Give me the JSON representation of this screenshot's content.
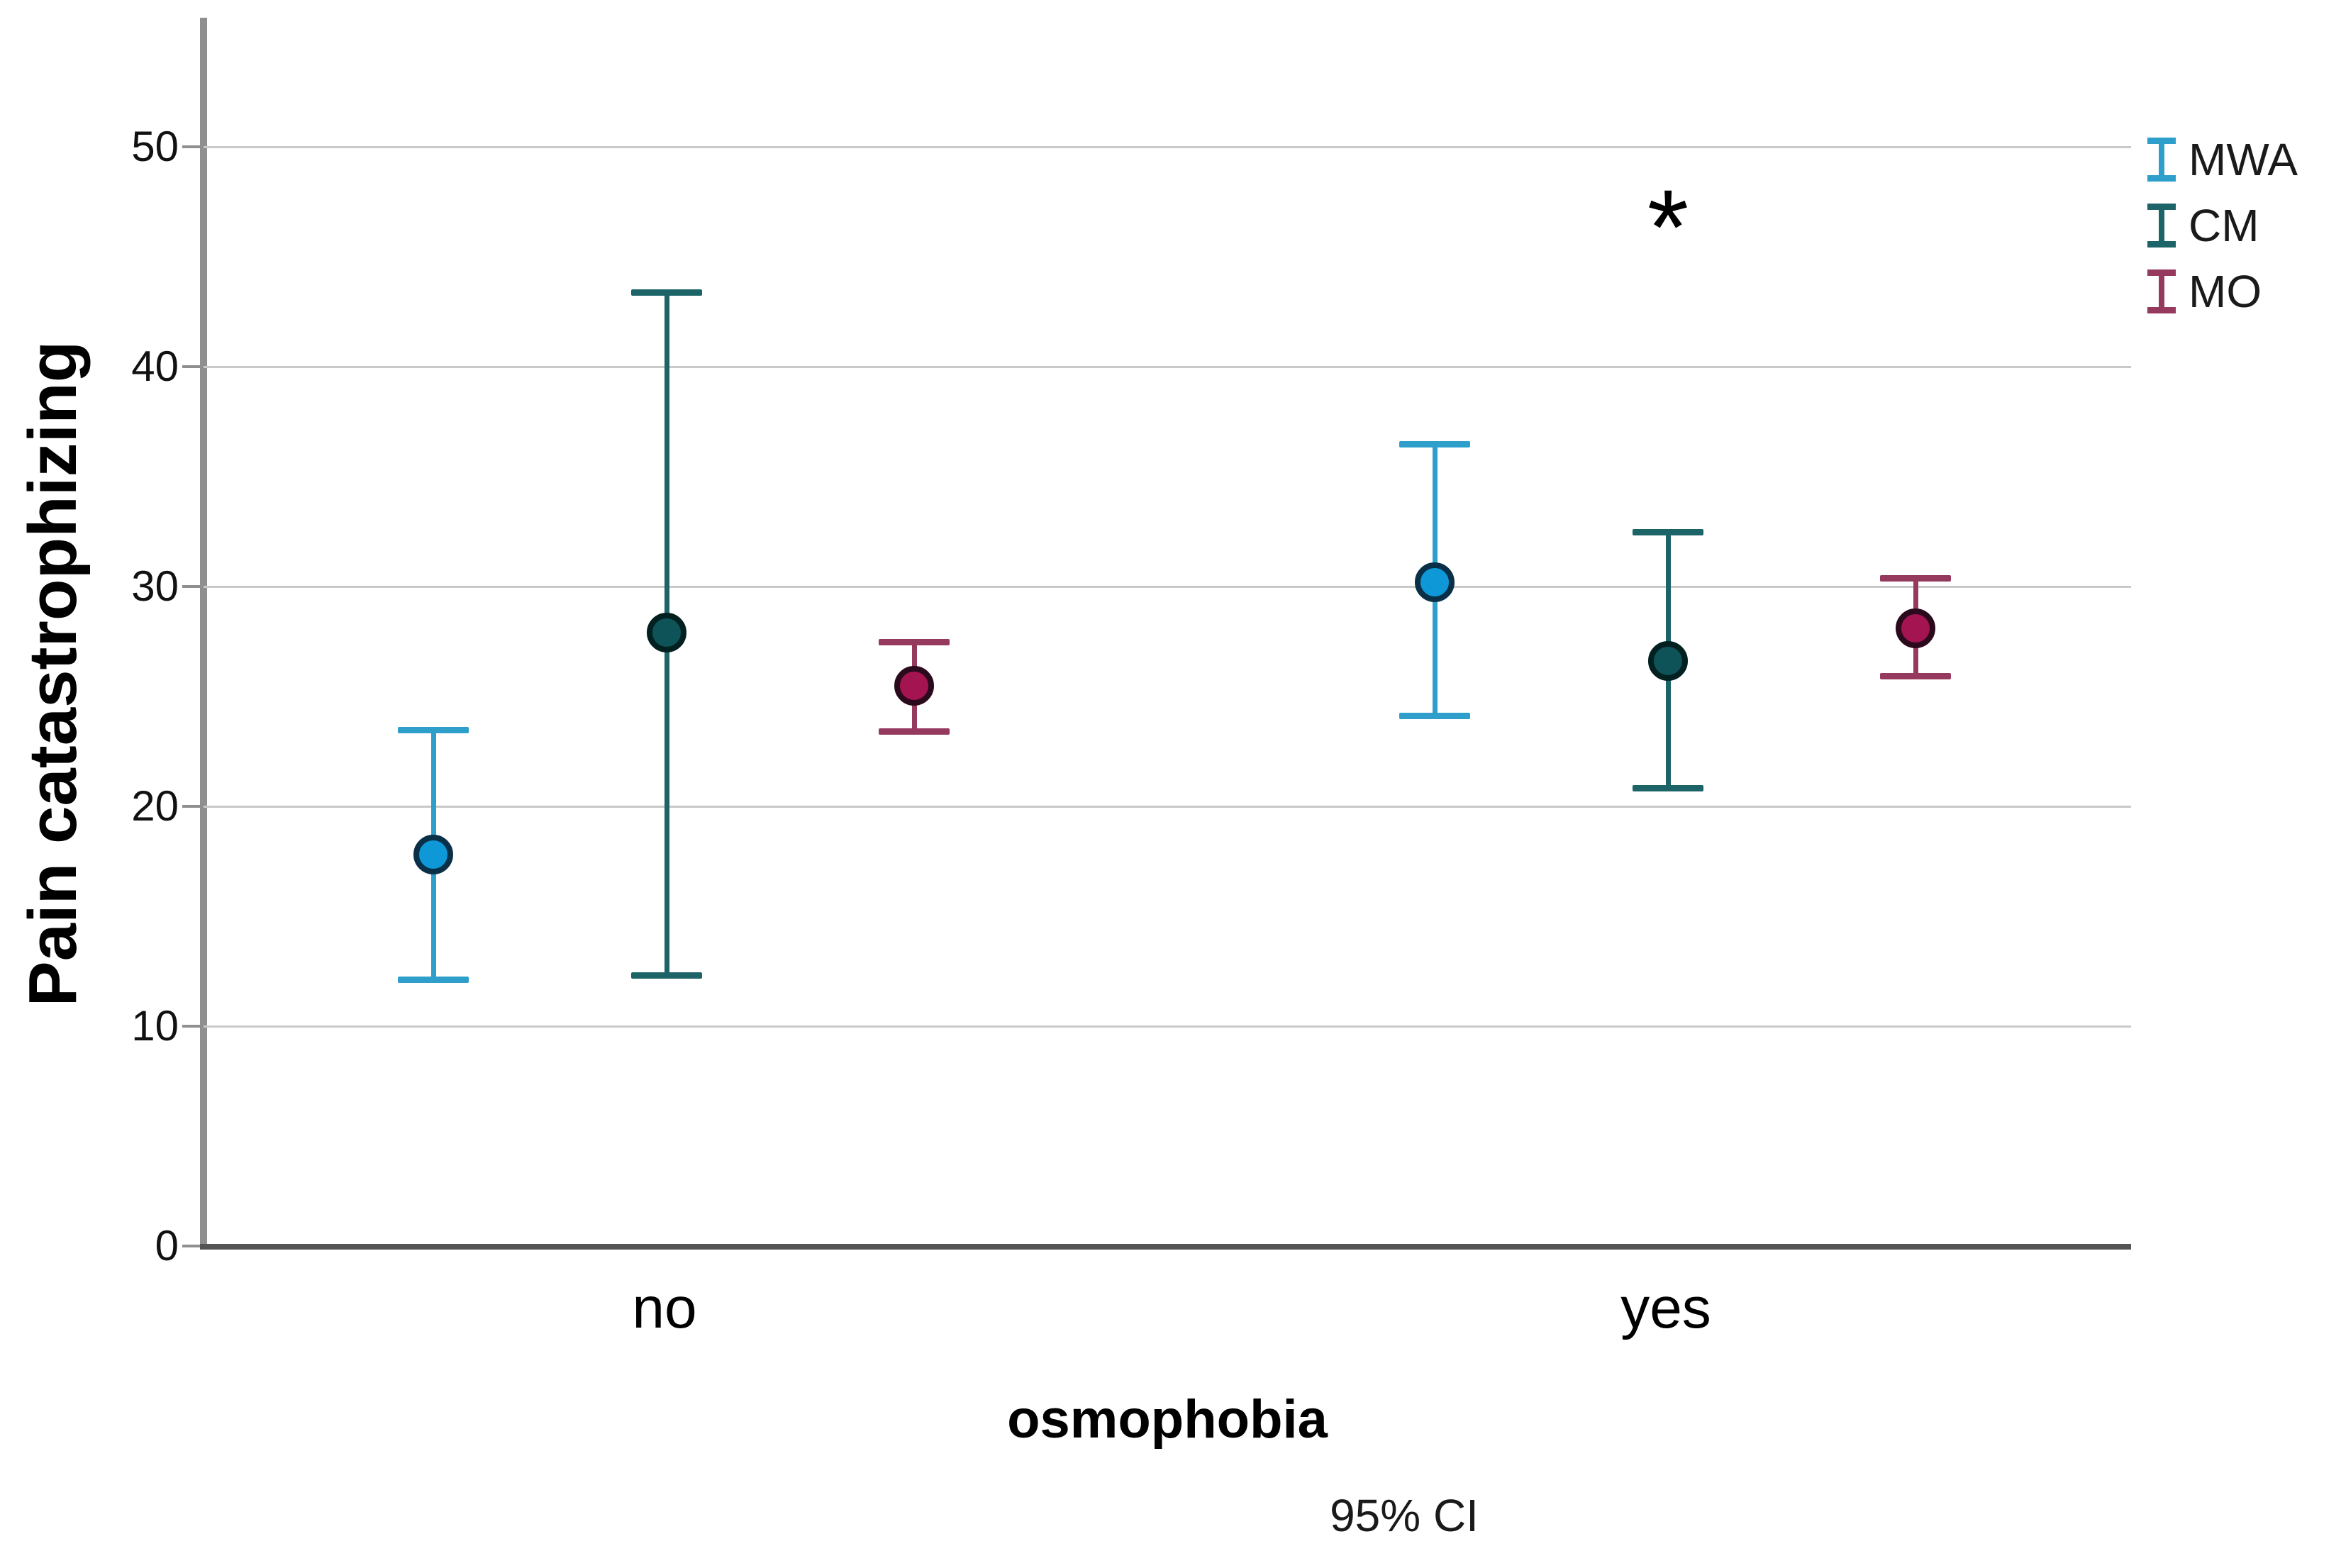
{
  "chart_data": {
    "type": "errorbar",
    "title": "",
    "xlabel": "osmophobia",
    "ylabel": "Pain catastrophizing",
    "caption": "95% CI",
    "categories": [
      "no",
      "yes"
    ],
    "series": [
      {
        "name": "MWA",
        "line_color": "#2e9fcb",
        "dot_fill": "#0f98d8",
        "dot_stroke": "#0a3048",
        "means": [
          17.8,
          30.2
        ],
        "ci_low": [
          12.1,
          24.1
        ],
        "ci_high": [
          23.5,
          36.5
        ]
      },
      {
        "name": "CM",
        "line_color": "#1d6468",
        "dot_fill": "#0e5358",
        "dot_stroke": "#032021",
        "means": [
          27.9,
          26.6
        ],
        "ci_low": [
          12.3,
          20.8
        ],
        "ci_high": [
          43.4,
          32.5
        ]
      },
      {
        "name": "MO",
        "line_color": "#95395e",
        "dot_fill": "#a31450",
        "dot_stroke": "#2a0a1c",
        "means": [
          25.5,
          28.1
        ],
        "ci_low": [
          23.4,
          25.9
        ],
        "ci_high": [
          27.5,
          30.4
        ]
      }
    ],
    "yticks": [
      0,
      10,
      20,
      30,
      40,
      50
    ],
    "ylim": [
      0,
      55.8
    ],
    "grid": true,
    "legend_position": "top-right",
    "annotation": {
      "text": "*",
      "category": "yes",
      "series": "CM",
      "value": 47
    }
  }
}
